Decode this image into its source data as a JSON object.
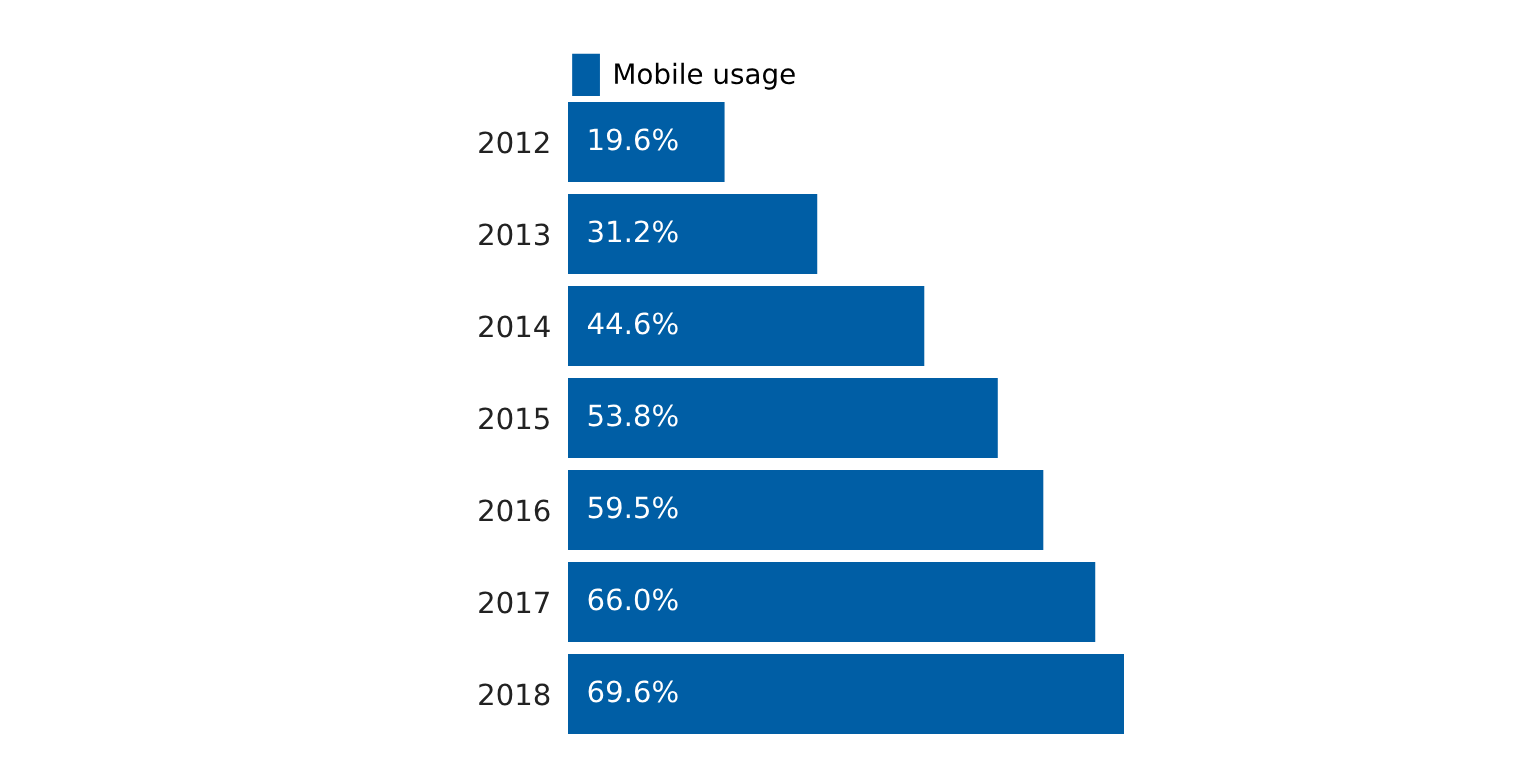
{
  "chart_data": {
    "type": "bar",
    "orientation": "horizontal",
    "categories": [
      "2012",
      "2013",
      "2014",
      "2015",
      "2016",
      "2017",
      "2018"
    ],
    "series": [
      {
        "name": "Mobile usage",
        "color": "#005ea5",
        "values": [
          19.6,
          31.2,
          44.6,
          53.8,
          59.5,
          66.0,
          69.6
        ],
        "value_labels": [
          "19.6%",
          "31.2%",
          "44.6%",
          "53.8%",
          "59.5%",
          "66.0%",
          "69.6%"
        ]
      }
    ],
    "legend": "top left",
    "grid": false
  }
}
